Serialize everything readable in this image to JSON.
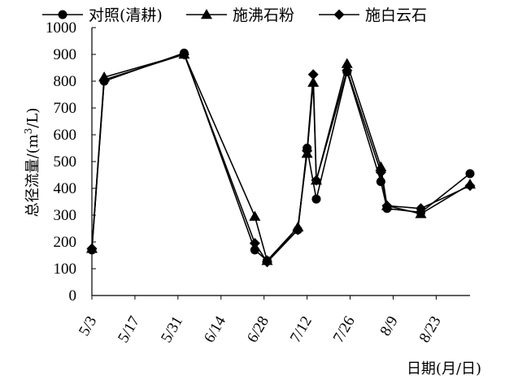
{
  "chart_data": {
    "type": "line",
    "xlabel": "日期(月/日)",
    "ylabel": "总径流量/(m³/L)",
    "ylabel_parts": {
      "before": "总径流量/(m",
      "sup": "3",
      "after": "/L)"
    },
    "ylim": [
      0,
      1000
    ],
    "yticks": [
      0,
      100,
      200,
      300,
      400,
      500,
      600,
      700,
      800,
      900,
      1000
    ],
    "xticks": [
      "5/3",
      "5/17",
      "5/31",
      "6/14",
      "6/28",
      "7/12",
      "7/26",
      "8/9",
      "8/23"
    ],
    "x_axis_type": "date",
    "x_range": [
      "5/3",
      "9/3"
    ],
    "legend_position": "top",
    "grid": false,
    "series": [
      {
        "name": "对照(清耕)",
        "marker": "circle",
        "color": "#000000",
        "points": [
          {
            "x": "5/3",
            "y": 170
          },
          {
            "x": "5/7",
            "y": 800
          },
          {
            "x": "6/2",
            "y": 905
          },
          {
            "x": "6/25",
            "y": 170
          },
          {
            "x": "6/29",
            "y": 130
          },
          {
            "x": "7/9",
            "y": 245
          },
          {
            "x": "7/12",
            "y": 550
          },
          {
            "x": "7/15",
            "y": 360
          },
          {
            "x": "7/25",
            "y": 835
          },
          {
            "x": "8/5",
            "y": 425
          },
          {
            "x": "8/7",
            "y": 325
          },
          {
            "x": "8/18",
            "y": 310
          },
          {
            "x": "9/3",
            "y": 455
          }
        ]
      },
      {
        "name": "施沸石粉",
        "marker": "triangle",
        "color": "#000000",
        "points": [
          {
            "x": "5/3",
            "y": 175
          },
          {
            "x": "5/7",
            "y": 815
          },
          {
            "x": "6/2",
            "y": 900
          },
          {
            "x": "6/25",
            "y": 295
          },
          {
            "x": "6/29",
            "y": 130
          },
          {
            "x": "7/9",
            "y": 255
          },
          {
            "x": "7/12",
            "y": 530
          },
          {
            "x": "7/14",
            "y": 795
          },
          {
            "x": "7/15",
            "y": 430
          },
          {
            "x": "7/25",
            "y": 865
          },
          {
            "x": "8/5",
            "y": 480
          },
          {
            "x": "8/7",
            "y": 335
          },
          {
            "x": "8/18",
            "y": 305
          },
          {
            "x": "9/3",
            "y": 415
          }
        ]
      },
      {
        "name": "施白云石",
        "marker": "diamond",
        "color": "#000000",
        "points": [
          {
            "x": "5/3",
            "y": 175
          },
          {
            "x": "5/7",
            "y": 805
          },
          {
            "x": "6/2",
            "y": 900
          },
          {
            "x": "6/25",
            "y": 195
          },
          {
            "x": "6/29",
            "y": 125
          },
          {
            "x": "7/9",
            "y": 245
          },
          {
            "x": "7/12",
            "y": 540
          },
          {
            "x": "7/14",
            "y": 825
          },
          {
            "x": "7/15",
            "y": 430
          },
          {
            "x": "7/25",
            "y": 840
          },
          {
            "x": "8/5",
            "y": 460
          },
          {
            "x": "8/7",
            "y": 335
          },
          {
            "x": "8/18",
            "y": 325
          },
          {
            "x": "9/3",
            "y": 410
          }
        ]
      }
    ]
  }
}
